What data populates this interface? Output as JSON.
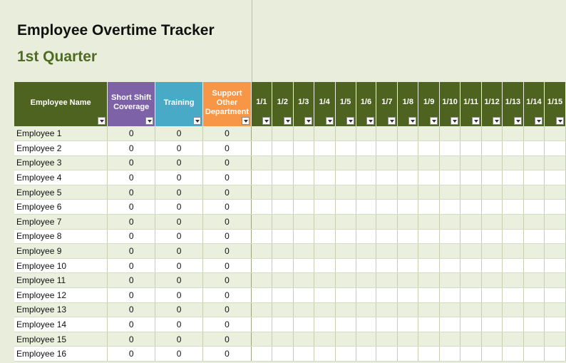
{
  "title": "Employee Overtime Tracker",
  "subtitle": "1st Quarter",
  "colors": {
    "header_green": "#4e6320",
    "short_shift_purple": "#7d62a8",
    "training_blue": "#49aac8",
    "support_orange": "#f79646",
    "subtitle_green": "#4e6b21"
  },
  "columns": {
    "employee_name": "Employee Name",
    "short_shift": "Short Shift Coverage",
    "training": "Training",
    "support": "Support Other Department"
  },
  "dates": [
    "1/1",
    "1/2",
    "1/3",
    "1/4",
    "1/5",
    "1/6",
    "1/7",
    "1/8",
    "1/9",
    "1/10",
    "1/11",
    "1/12",
    "1/13",
    "1/14",
    "1/15"
  ],
  "rows": [
    {
      "name": "Employee 1",
      "short_shift": "0",
      "training": "0",
      "support": "0"
    },
    {
      "name": "Employee 2",
      "short_shift": "0",
      "training": "0",
      "support": "0"
    },
    {
      "name": "Employee 3",
      "short_shift": "0",
      "training": "0",
      "support": "0"
    },
    {
      "name": "Employee 4",
      "short_shift": "0",
      "training": "0",
      "support": "0"
    },
    {
      "name": "Employee 5",
      "short_shift": "0",
      "training": "0",
      "support": "0"
    },
    {
      "name": "Employee 6",
      "short_shift": "0",
      "training": "0",
      "support": "0"
    },
    {
      "name": "Employee 7",
      "short_shift": "0",
      "training": "0",
      "support": "0"
    },
    {
      "name": "Employee 8",
      "short_shift": "0",
      "training": "0",
      "support": "0"
    },
    {
      "name": "Employee 9",
      "short_shift": "0",
      "training": "0",
      "support": "0"
    },
    {
      "name": "Employee 10",
      "short_shift": "0",
      "training": "0",
      "support": "0"
    },
    {
      "name": "Employee 11",
      "short_shift": "0",
      "training": "0",
      "support": "0"
    },
    {
      "name": "Employee 12",
      "short_shift": "0",
      "training": "0",
      "support": "0"
    },
    {
      "name": "Employee 13",
      "short_shift": "0",
      "training": "0",
      "support": "0"
    },
    {
      "name": "Employee 14",
      "short_shift": "0",
      "training": "0",
      "support": "0"
    },
    {
      "name": "Employee 15",
      "short_shift": "0",
      "training": "0",
      "support": "0"
    },
    {
      "name": "Employee 16",
      "short_shift": "0",
      "training": "0",
      "support": "0"
    }
  ]
}
